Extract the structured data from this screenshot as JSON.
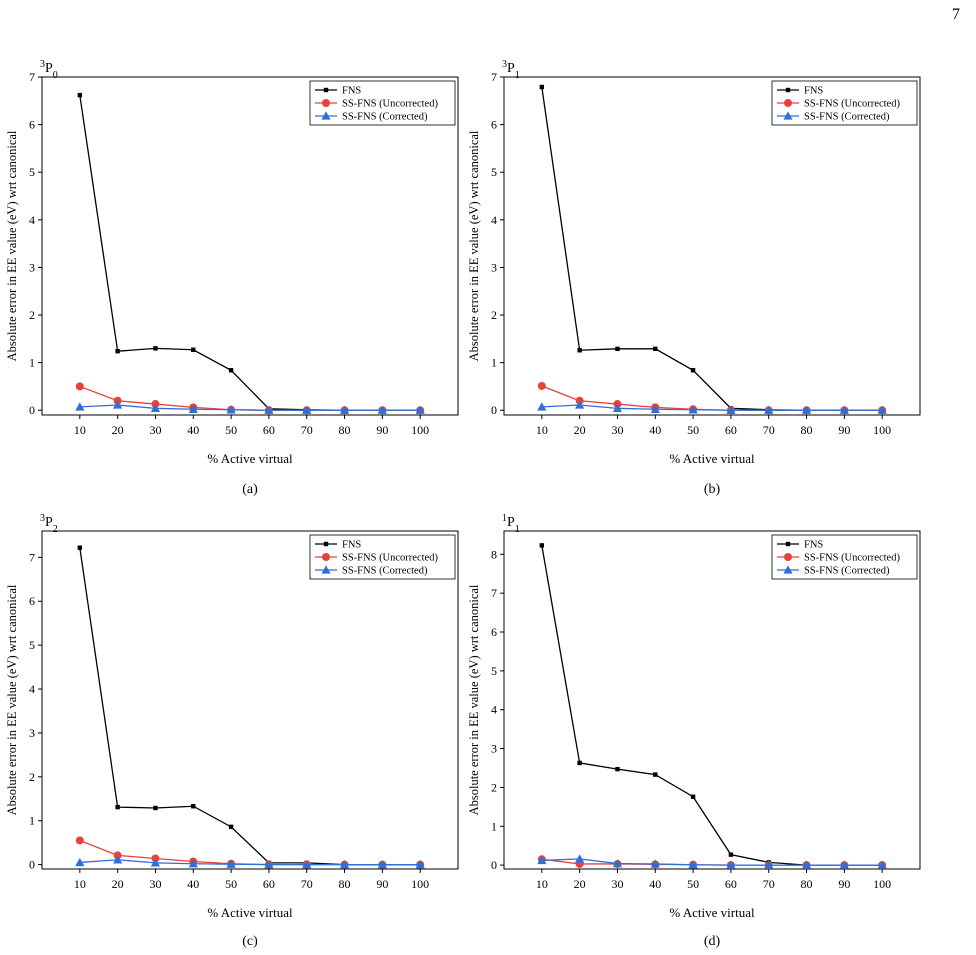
{
  "page": {
    "number": "7"
  },
  "series_style": {
    "FNS": {
      "color": "#000000",
      "marker": "square"
    },
    "SS-FNS (Uncorrected)": {
      "color": "#e8403a",
      "marker": "circle"
    },
    "SS-FNS (Corrected)": {
      "color": "#2f6fdc",
      "marker": "triangle"
    }
  },
  "chart_data": [
    {
      "type": "line",
      "title_main": "3",
      "title_state": "P",
      "title_sub": "0",
      "caption": "(a)",
      "xlabel": "% Active virtual",
      "ylabel": "Absolute error in EE value (eV) wrt canonical",
      "x": [
        10,
        20,
        30,
        40,
        50,
        60,
        70,
        80,
        90,
        100
      ],
      "ylim": [
        -0.1,
        7
      ],
      "yticks": [
        0,
        1,
        2,
        3,
        4,
        5,
        6,
        7
      ],
      "legend": "top-right",
      "series": [
        {
          "name": "FNS",
          "values": [
            6.62,
            1.24,
            1.3,
            1.27,
            0.84,
            0.03,
            0.01,
            0.0,
            0.0,
            0.0
          ]
        },
        {
          "name": "SS-FNS (Uncorrected)",
          "values": [
            0.5,
            0.2,
            0.13,
            0.06,
            0.01,
            0.0,
            0.0,
            0.0,
            0.0,
            0.0
          ]
        },
        {
          "name": "SS-FNS (Corrected)",
          "values": [
            0.07,
            0.11,
            0.04,
            0.02,
            0.01,
            0.0,
            0.0,
            0.0,
            0.0,
            0.0
          ]
        }
      ]
    },
    {
      "type": "line",
      "title_main": "3",
      "title_state": "P",
      "title_sub": "1",
      "caption": "(b)",
      "xlabel": "% Active virtual",
      "ylabel": "Absolute error in EE value (eV) wrt canonical",
      "x": [
        10,
        20,
        30,
        40,
        50,
        60,
        70,
        80,
        90,
        100
      ],
      "ylim": [
        -0.1,
        7
      ],
      "yticks": [
        0,
        1,
        2,
        3,
        4,
        5,
        6,
        7
      ],
      "legend": "top-right",
      "series": [
        {
          "name": "FNS",
          "values": [
            6.79,
            1.26,
            1.29,
            1.29,
            0.84,
            0.04,
            0.01,
            0.0,
            0.0,
            0.0
          ]
        },
        {
          "name": "SS-FNS (Uncorrected)",
          "values": [
            0.51,
            0.2,
            0.13,
            0.06,
            0.02,
            0.0,
            0.0,
            0.0,
            0.0,
            0.0
          ]
        },
        {
          "name": "SS-FNS (Corrected)",
          "values": [
            0.07,
            0.11,
            0.04,
            0.02,
            0.01,
            0.0,
            0.0,
            0.0,
            0.0,
            0.0
          ]
        }
      ]
    },
    {
      "type": "line",
      "title_main": "3",
      "title_state": "P",
      "title_sub": "2",
      "caption": "(c)",
      "xlabel": "% Active virtual",
      "ylabel": "Absolute error in EE value (eV) wrt canonical",
      "x": [
        10,
        20,
        30,
        40,
        50,
        60,
        70,
        80,
        90,
        100
      ],
      "ylim": [
        -0.1,
        7.6
      ],
      "yticks": [
        0,
        1,
        2,
        3,
        4,
        5,
        6,
        7
      ],
      "legend": "top-right",
      "series": [
        {
          "name": "FNS",
          "values": [
            7.22,
            1.31,
            1.29,
            1.33,
            0.86,
            0.04,
            0.04,
            0.0,
            0.0,
            0.0
          ]
        },
        {
          "name": "SS-FNS (Uncorrected)",
          "values": [
            0.55,
            0.21,
            0.14,
            0.07,
            0.02,
            0.0,
            0.0,
            0.0,
            0.0,
            0.0
          ]
        },
        {
          "name": "SS-FNS (Corrected)",
          "values": [
            0.05,
            0.11,
            0.04,
            0.02,
            0.01,
            0.0,
            0.0,
            0.0,
            0.0,
            0.0
          ]
        }
      ]
    },
    {
      "type": "line",
      "title_main": "1",
      "title_state": "P",
      "title_sub": "1",
      "caption": "(d)",
      "xlabel": "% Active virtual",
      "ylabel": "Absolute error in EE value (eV) wrt canonical",
      "x": [
        10,
        20,
        30,
        40,
        50,
        60,
        70,
        80,
        90,
        100
      ],
      "ylim": [
        -0.1,
        8.6
      ],
      "yticks": [
        0,
        1,
        2,
        3,
        4,
        5,
        6,
        7,
        8
      ],
      "legend": "top-right",
      "series": [
        {
          "name": "FNS",
          "values": [
            8.23,
            2.63,
            2.47,
            2.33,
            1.76,
            0.27,
            0.07,
            0.0,
            0.0,
            0.0
          ]
        },
        {
          "name": "SS-FNS (Uncorrected)",
          "values": [
            0.15,
            0.03,
            0.03,
            0.02,
            0.01,
            0.0,
            0.0,
            0.0,
            0.0,
            0.0
          ]
        },
        {
          "name": "SS-FNS (Corrected)",
          "values": [
            0.12,
            0.16,
            0.04,
            0.03,
            0.01,
            0.0,
            0.0,
            0.0,
            0.0,
            0.0
          ]
        }
      ]
    }
  ]
}
